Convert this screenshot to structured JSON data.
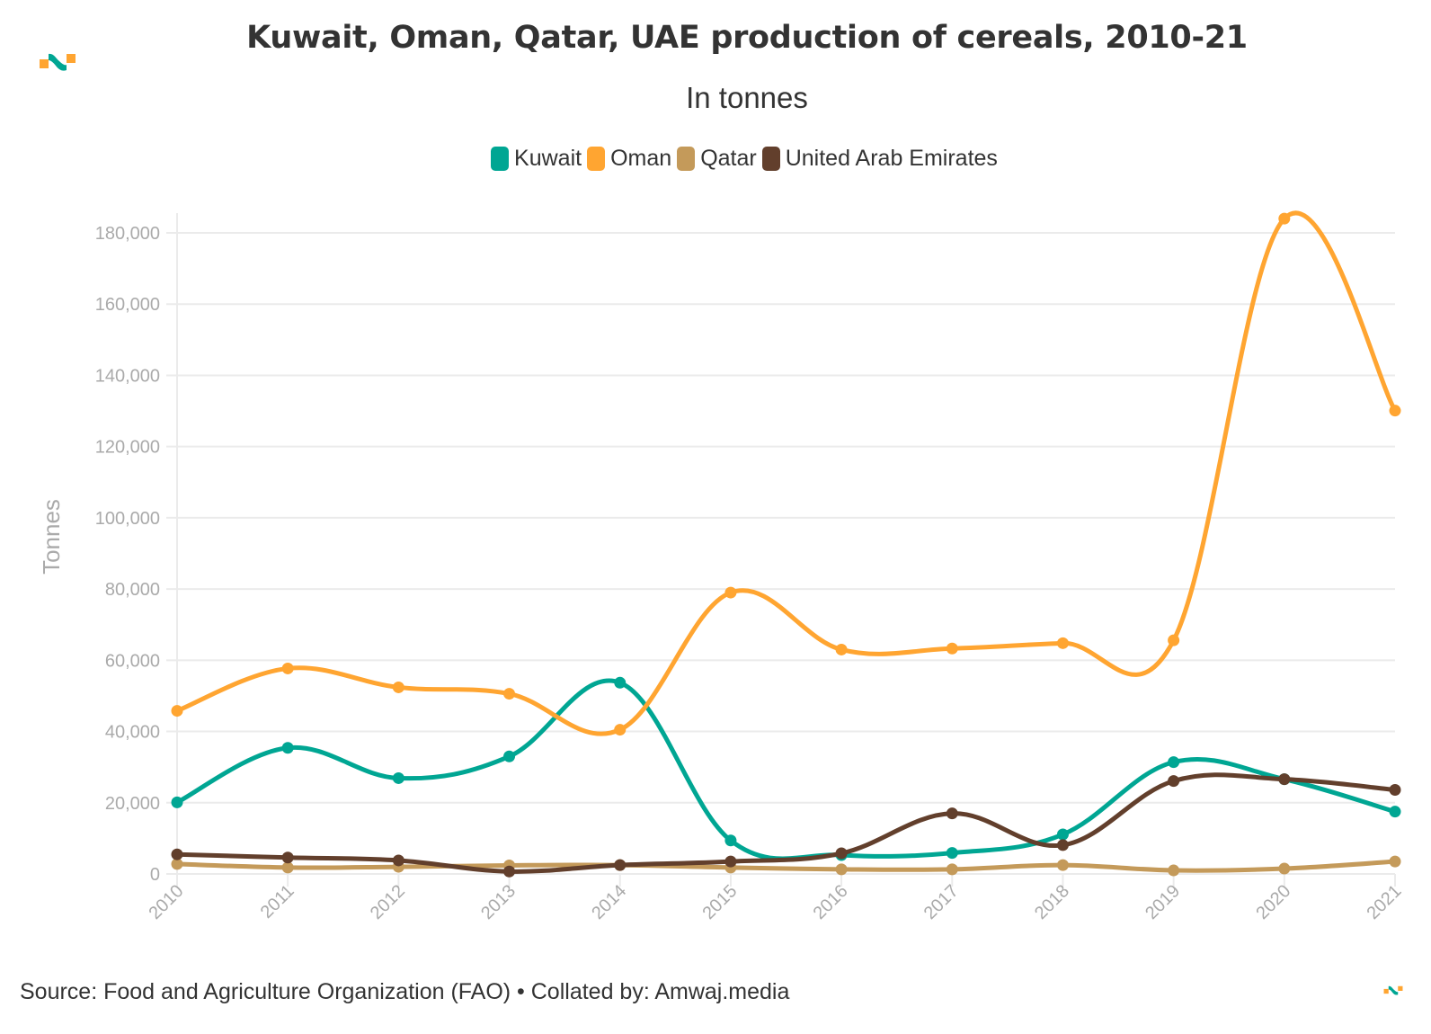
{
  "header": {
    "title": "Kuwait, Oman, Qatar, UAE production of cereals, 2010-21",
    "subtitle": "In tonnes",
    "logo_icon": "amwaj-logo-icon"
  },
  "footer": {
    "source": "Source: Food and Agriculture Organization (FAO) • Collated by: Amwaj.media",
    "logo_icon": "amwaj-logo-icon"
  },
  "brand_colors": {
    "teal": "#00a693",
    "orange": "#ffa531"
  },
  "chart_data": {
    "type": "line",
    "title": "Kuwait, Oman, Qatar, UAE production of cereals, 2010-21",
    "subtitle": "In tonnes",
    "xlabel": "",
    "ylabel": "Tonnes",
    "x": [
      "2010",
      "2011",
      "2012",
      "2013",
      "2014",
      "2015",
      "2016",
      "2017",
      "2018",
      "2019",
      "2020",
      "2021"
    ],
    "ylim": [
      0,
      180000
    ],
    "yticks": [
      0,
      20000,
      40000,
      60000,
      80000,
      100000,
      120000,
      140000,
      160000,
      180000
    ],
    "ytick_labels": [
      "0",
      "20,000",
      "40,000",
      "60,000",
      "80,000",
      "100,000",
      "120,000",
      "140,000",
      "160,000",
      "180,000"
    ],
    "grid": true,
    "legend_position": "top-center",
    "smooth": true,
    "series": [
      {
        "name": "Kuwait",
        "color": "#00a693",
        "values": [
          20100,
          35400,
          26900,
          33000,
          53700,
          9400,
          5300,
          5900,
          11100,
          31400,
          26600,
          17500
        ]
      },
      {
        "name": "Oman",
        "color": "#ffa531",
        "values": [
          45800,
          57700,
          52400,
          50600,
          40500,
          79000,
          63000,
          63300,
          64800,
          65600,
          184000,
          130100
        ]
      },
      {
        "name": "Qatar",
        "color": "#c49a5a",
        "values": [
          2800,
          1800,
          2000,
          2400,
          2500,
          1800,
          1300,
          1300,
          2500,
          1000,
          1500,
          3500
        ]
      },
      {
        "name": "United Arab Emirates",
        "color": "#623f2c",
        "values": [
          5500,
          4600,
          3800,
          700,
          2500,
          3500,
          5800,
          17000,
          8100,
          26100,
          26600,
          23600
        ]
      }
    ]
  }
}
